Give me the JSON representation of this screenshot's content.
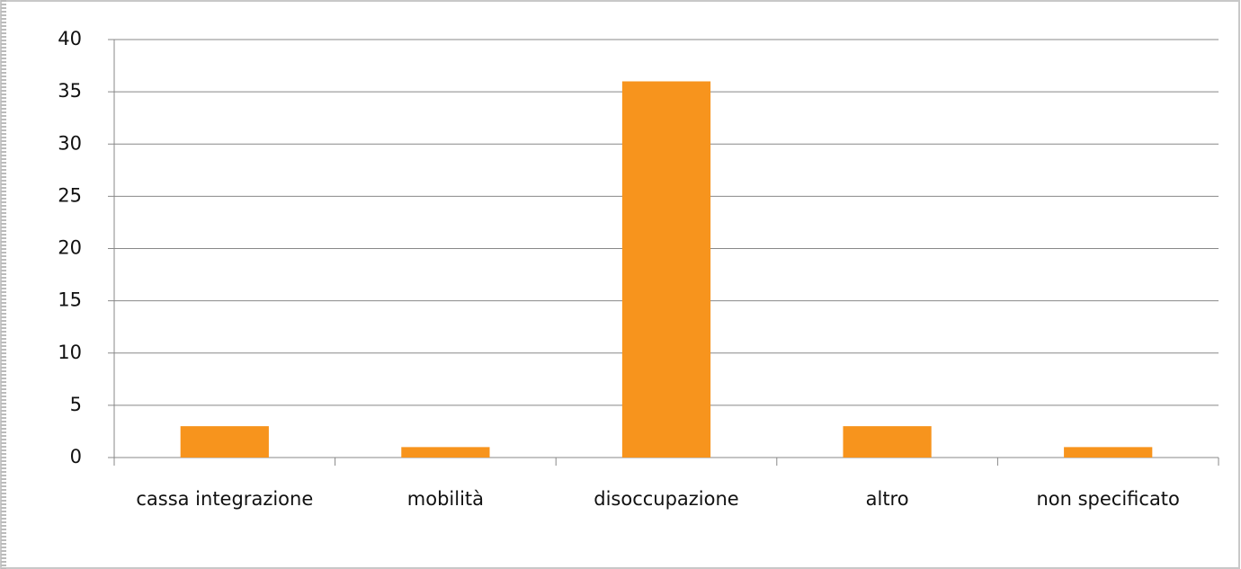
{
  "chart_data": {
    "type": "bar",
    "categories": [
      "cassa integrazione",
      "mobilità",
      "disoccupazione",
      "altro",
      "non specificato"
    ],
    "values": [
      3,
      1,
      36,
      3,
      1
    ],
    "color": "#f7941d",
    "ylim": [
      0,
      40
    ],
    "yticks": [
      0,
      5,
      10,
      15,
      20,
      25,
      30,
      35,
      40
    ],
    "grid": true
  }
}
